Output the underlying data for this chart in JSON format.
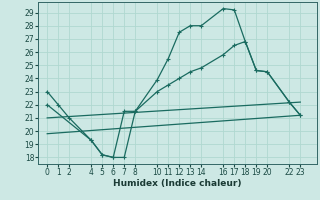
{
  "xlabel": "Humidex (Indice chaleur)",
  "bg_color": "#cde8e4",
  "grid_color": "#b0d8d0",
  "line_color": "#1a6b60",
  "ylim": [
    17.5,
    29.8
  ],
  "yticks": [
    18,
    19,
    20,
    21,
    22,
    23,
    24,
    25,
    26,
    27,
    28,
    29
  ],
  "xticks": [
    0,
    1,
    2,
    4,
    5,
    6,
    7,
    8,
    10,
    11,
    12,
    13,
    14,
    16,
    17,
    18,
    19,
    20,
    22,
    23
  ],
  "xlim": [
    -0.8,
    24.5
  ],
  "line1_x": [
    0,
    1,
    2,
    4,
    5,
    6,
    7,
    8,
    10,
    11,
    12,
    13,
    14,
    16,
    17,
    18,
    19,
    20,
    22,
    23
  ],
  "line1_y": [
    23,
    22,
    21,
    19.3,
    18.2,
    18.0,
    18.0,
    21.5,
    23.9,
    25.5,
    27.5,
    28.0,
    28.0,
    29.3,
    29.2,
    26.8,
    24.6,
    24.5,
    22.2,
    21.2
  ],
  "line2_x": [
    0,
    4,
    5,
    6,
    7,
    8,
    10,
    11,
    12,
    13,
    14,
    16,
    17,
    18,
    19,
    20,
    22,
    23
  ],
  "line2_y": [
    22.0,
    19.3,
    18.2,
    18.0,
    21.5,
    21.5,
    23.0,
    23.5,
    24.0,
    24.5,
    24.8,
    25.8,
    26.5,
    26.8,
    24.6,
    24.5,
    22.2,
    21.2
  ],
  "line3_x": [
    0,
    23
  ],
  "line3_y": [
    21.0,
    22.2
  ],
  "line4_x": [
    0,
    23
  ],
  "line4_y": [
    19.8,
    21.2
  ],
  "figsize": [
    3.2,
    2.0
  ],
  "dpi": 100
}
